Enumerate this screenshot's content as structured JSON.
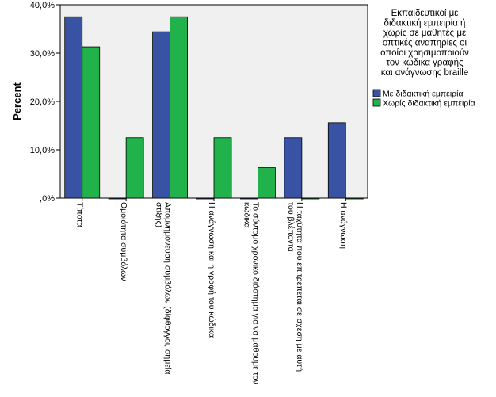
{
  "chart_data": {
    "type": "bar",
    "ylabel": "Percent",
    "xlabel": "",
    "ylim": [
      0,
      40
    ],
    "yticks": [
      0,
      10,
      20,
      30,
      40
    ],
    "ytick_labels": [
      ",0%",
      "10,0%",
      "20,0%",
      "30,0%",
      "40,0%"
    ],
    "categories": [
      [
        "Τίποτα"
      ],
      [
        "Ομοιότητα συμβόλων"
      ],
      [
        "Απομνημόνευση συμβόλων (δίφθογγοι, σημεία",
        "στίξης)"
      ],
      [
        "Η ανάγνωση και η γραφή του κώδικα"
      ],
      [
        "Το σύντομο χρονικό διάστημα για να μάθουμε τον",
        "κώδικα"
      ],
      [
        "Η ταχύτητα που επιτρέπεται σε σχέση με αυτή",
        "του βλέποντα"
      ],
      [
        "Η ανάγνωση"
      ]
    ],
    "series": [
      {
        "name": "Με διδακτική εμπειρία",
        "color": "#3953a4",
        "values": [
          37.5,
          0,
          34.4,
          0,
          0,
          12.5,
          15.6
        ]
      },
      {
        "name": "Χωρίς διδακτική εμπειρία",
        "color": "#21b24b",
        "values": [
          31.3,
          12.5,
          37.5,
          12.5,
          6.3,
          0,
          0
        ]
      }
    ],
    "legend": {
      "title_lines": [
        "Εκπαιδευτικοί με",
        "διδακτική εμπειρία ή",
        "χωρίς σε μαθητές με",
        "οπτικές αναπηρίες οι",
        "οποίοι χρησιμοποιούν",
        "τον κώδικα γραφής",
        "και ανάγνωσης braille"
      ],
      "placement": "right"
    },
    "grid": false,
    "plot_background": "#f0f0f0"
  }
}
